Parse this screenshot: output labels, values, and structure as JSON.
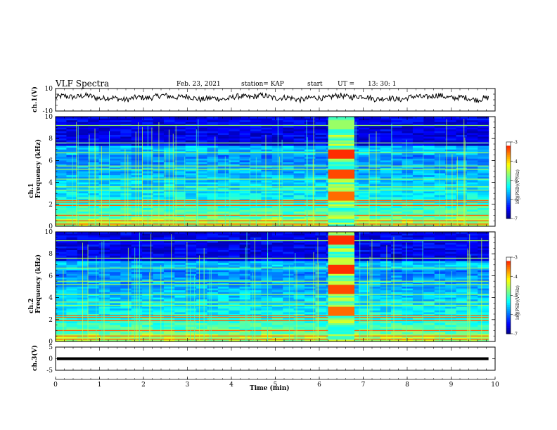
{
  "header": {
    "title": "VLF Spectra",
    "date": "Feb. 23, 2021",
    "station": "station= KAP",
    "start_label": "start",
    "ut_label": "UT =",
    "start_time": "13: 30: 1"
  },
  "chart_data": [
    {
      "type": "line",
      "ylabel": "ch.1(V)",
      "ylim": [
        -10,
        10
      ],
      "yticks": [
        "10",
        "-10"
      ],
      "description_series": "ch.1 voltage waveform, noisy signal fluctuating around ~+2 V",
      "x": [
        0,
        0.5,
        1,
        1.5,
        2,
        2.5,
        3,
        3.5,
        4,
        4.5,
        5,
        5.5,
        6,
        6.5,
        7,
        7.5,
        8,
        8.5,
        9,
        9.5,
        9.8
      ],
      "y": [
        2,
        4,
        1,
        3,
        2,
        3,
        1,
        3,
        2,
        4,
        3,
        2,
        2,
        3,
        1,
        2,
        3,
        2,
        1,
        2,
        4
      ]
    },
    {
      "type": "heatmap",
      "ylabel": "ch.1\nFrequency  (kHz)",
      "ylim": [
        0,
        10
      ],
      "yticks": [
        "0",
        "2",
        "4",
        "6",
        "8",
        "10"
      ],
      "colorbar": {
        "label": "log(PSD)(V²/Hz)",
        "range": [
          -7,
          -3
        ],
        "ticks": [
          "-3",
          "-4",
          "-5",
          "-6",
          "-7"
        ]
      },
      "burst_interval_min": [
        6.2,
        6.8
      ]
    },
    {
      "type": "heatmap",
      "ylabel": "ch.2\nFrequency  (kHz)",
      "ylim": [
        0,
        10
      ],
      "yticks": [
        "0",
        "2",
        "4",
        "6",
        "8",
        "10"
      ],
      "colorbar": {
        "label": "log(PSD)(V²/Hz)",
        "range": [
          -7,
          -3
        ],
        "ticks": [
          "-3",
          "-4",
          "-5",
          "-6",
          "-7"
        ]
      },
      "burst_interval_min": [
        6.2,
        6.8
      ]
    },
    {
      "type": "line",
      "ylabel": "ch.3(V)",
      "ylim": [
        -5,
        5
      ],
      "yticks": [
        "5",
        "0",
        "-5"
      ],
      "x": [
        0,
        9.8
      ],
      "y": [
        0,
        0
      ]
    }
  ],
  "xaxis": {
    "label": "Time  (min)",
    "ticks": [
      "0",
      "1",
      "2",
      "3",
      "4",
      "5",
      "6",
      "7",
      "8",
      "9",
      "10"
    ],
    "range": [
      0,
      10
    ]
  },
  "colors": {
    "colormap": [
      "#00007f",
      "#0000ff",
      "#0080ff",
      "#00ffff",
      "#80ff80",
      "#ffff00",
      "#ff8000",
      "#ff0000",
      "#ffffff"
    ]
  }
}
